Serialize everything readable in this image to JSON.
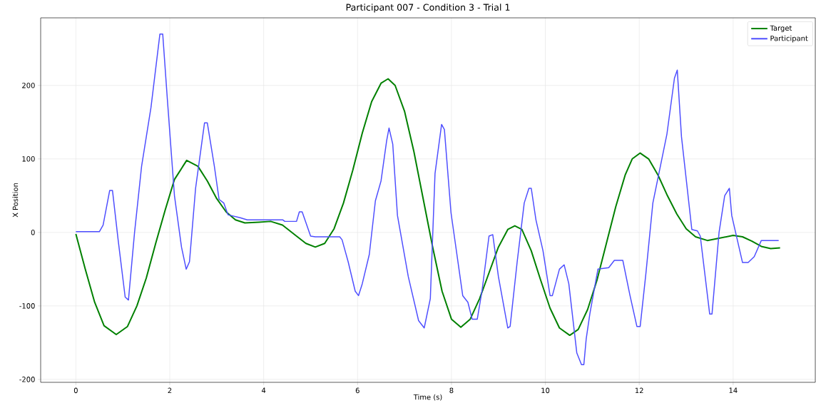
{
  "chart_data": {
    "type": "line",
    "title": "Participant 007 - Condition 3 - Trial 1",
    "xlabel": "Time (s)",
    "ylabel": "X Position",
    "xlim": [
      -0.75,
      15.75
    ],
    "ylim": [
      -204,
      292
    ],
    "xticks": [
      0,
      2,
      4,
      6,
      8,
      10,
      12,
      14
    ],
    "yticks": [
      -200,
      -100,
      0,
      100,
      200
    ],
    "grid": true,
    "legend": "top right",
    "marker": "none",
    "line_style": "solid",
    "series": [
      {
        "name": "Target",
        "color": "#008000",
        "x": [
          0,
          0.2,
          0.4,
          0.6,
          0.86,
          1.1,
          1.3,
          1.5,
          1.7,
          1.9,
          2.1,
          2.36,
          2.6,
          2.8,
          3.0,
          3.2,
          3.4,
          3.6,
          3.9,
          4.15,
          4.4,
          4.7,
          4.9,
          5.1,
          5.3,
          5.5,
          5.7,
          5.9,
          6.1,
          6.3,
          6.5,
          6.65,
          6.8,
          7.0,
          7.2,
          7.4,
          7.6,
          7.8,
          8.0,
          8.2,
          8.4,
          8.6,
          8.8,
          9.0,
          9.2,
          9.35,
          9.5,
          9.7,
          9.9,
          10.1,
          10.3,
          10.52,
          10.7,
          10.9,
          11.1,
          11.3,
          11.5,
          11.7,
          11.85,
          12.02,
          12.2,
          12.4,
          12.6,
          12.8,
          13.0,
          13.2,
          13.45,
          13.7,
          14.0,
          14.2,
          14.4,
          14.6,
          14.8,
          15.0
        ],
        "values": [
          -2,
          -50,
          -95,
          -127,
          -139,
          -128,
          -100,
          -62,
          -15,
          30,
          72,
          98,
          90,
          70,
          46,
          28,
          17,
          13,
          14,
          15,
          10,
          -5,
          -15,
          -20,
          -15,
          5,
          40,
          85,
          135,
          178,
          203,
          209,
          200,
          165,
          110,
          45,
          -20,
          -80,
          -118,
          -129,
          -118,
          -90,
          -55,
          -20,
          4,
          9,
          4,
          -25,
          -65,
          -103,
          -130,
          -140,
          -132,
          -105,
          -65,
          -15,
          35,
          78,
          100,
          108,
          100,
          78,
          50,
          25,
          5,
          -6,
          -11,
          -8,
          -4,
          -6,
          -12,
          -19,
          -22,
          -21
        ]
      },
      {
        "name": "Participant",
        "color": "#4d4dff",
        "x": [
          0,
          0.5,
          0.58,
          0.72,
          0.78,
          0.9,
          1.05,
          1.12,
          1.25,
          1.4,
          1.5,
          1.6,
          1.79,
          1.85,
          1.95,
          2.1,
          2.25,
          2.35,
          2.42,
          2.55,
          2.74,
          2.8,
          2.95,
          3.05,
          3.15,
          3.24,
          3.5,
          3.65,
          4.41,
          4.45,
          4.7,
          4.76,
          4.82,
          5.0,
          5.1,
          5.62,
          5.67,
          5.8,
          5.95,
          6.02,
          6.1,
          6.25,
          6.38,
          6.5,
          6.62,
          6.67,
          6.75,
          6.85,
          7.08,
          7.3,
          7.42,
          7.55,
          7.65,
          7.79,
          7.85,
          7.99,
          8.24,
          8.35,
          8.44,
          8.55,
          8.65,
          8.8,
          8.88,
          9.0,
          9.2,
          9.25,
          9.4,
          9.55,
          9.65,
          9.7,
          9.8,
          9.95,
          10.1,
          10.15,
          10.3,
          10.4,
          10.5,
          10.67,
          10.77,
          10.82,
          10.87,
          10.95,
          11.12,
          11.35,
          11.47,
          11.65,
          11.8,
          11.95,
          12.02,
          12.14,
          12.29,
          12.45,
          12.59,
          12.75,
          12.81,
          12.9,
          13.12,
          13.24,
          13.3,
          13.5,
          13.55,
          13.7,
          13.82,
          13.92,
          13.97,
          14.2,
          14.32,
          14.45,
          14.6,
          14.97
        ],
        "values": [
          1,
          1,
          10,
          57,
          57,
          -10,
          -88,
          -92,
          0,
          90,
          130,
          170,
          270,
          270,
          180,
          50,
          -20,
          -50,
          -40,
          60,
          149,
          149,
          90,
          45,
          40,
          24,
          20,
          17,
          17,
          15,
          15,
          28,
          28,
          -5,
          -6,
          -6,
          -10,
          -40,
          -80,
          -86,
          -70,
          -30,
          43,
          70,
          125,
          142,
          120,
          23,
          -60,
          -120,
          -130,
          -90,
          80,
          147,
          140,
          27,
          -86,
          -95,
          -118,
          -118,
          -80,
          -5,
          -3,
          -60,
          -130,
          -128,
          -40,
          40,
          60,
          60,
          17,
          -25,
          -86,
          -86,
          -50,
          -44,
          -70,
          -164,
          -180,
          -180,
          -145,
          -110,
          -50,
          -48,
          -38,
          -38,
          -85,
          -128,
          -128,
          -57,
          40,
          90,
          134,
          210,
          221,
          130,
          4,
          2,
          -5,
          -111,
          -111,
          0,
          50,
          60,
          23,
          -41,
          -41,
          -33,
          -11,
          -11
        ]
      }
    ]
  }
}
